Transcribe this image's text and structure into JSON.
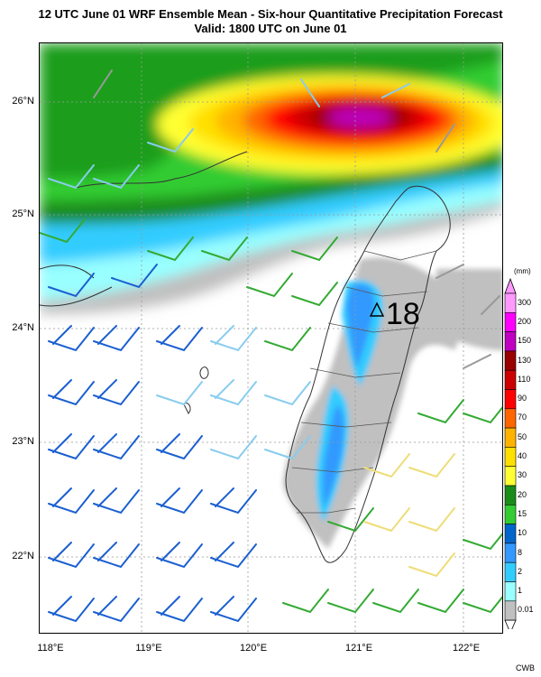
{
  "title": {
    "line1": "12 UTC June 01 WRF Ensemble Mean - Six-hour Quantitative Precipitation Forecast",
    "line2": "Valid: 1800 UTC on June 01"
  },
  "map": {
    "lat_labels": [
      "26°N",
      "25°N",
      "24°N",
      "23°N",
      "22°N"
    ],
    "lon_labels": [
      "118°E",
      "119°E",
      "120°E",
      "121°E",
      "122°E"
    ],
    "extent": {
      "lon_min": 118.0,
      "lon_max": 122.3,
      "lat_min": 21.35,
      "lat_max": 26.5
    },
    "peak_marker": {
      "label": "18",
      "lon": 121.05,
      "lat": 24.13,
      "symbol": "triangle"
    }
  },
  "colorbar": {
    "unit": "(mm)",
    "levels": [
      "300",
      "200",
      "150",
      "130",
      "110",
      "90",
      "70",
      "50",
      "40",
      "30",
      "20",
      "15",
      "10",
      "8",
      "2",
      "1",
      "0.01"
    ],
    "colors": [
      "#ff99ff",
      "#ff00ff",
      "#c000c0",
      "#990000",
      "#cc0000",
      "#ff0000",
      "#ff6600",
      "#ffb300",
      "#ffe000",
      "#ffff33",
      "#1a8c1a",
      "#33cc33",
      "#0066cc",
      "#3399ff",
      "#33ccff",
      "#99ffff",
      "#c0c0c0"
    ]
  },
  "credit": "CWB"
}
